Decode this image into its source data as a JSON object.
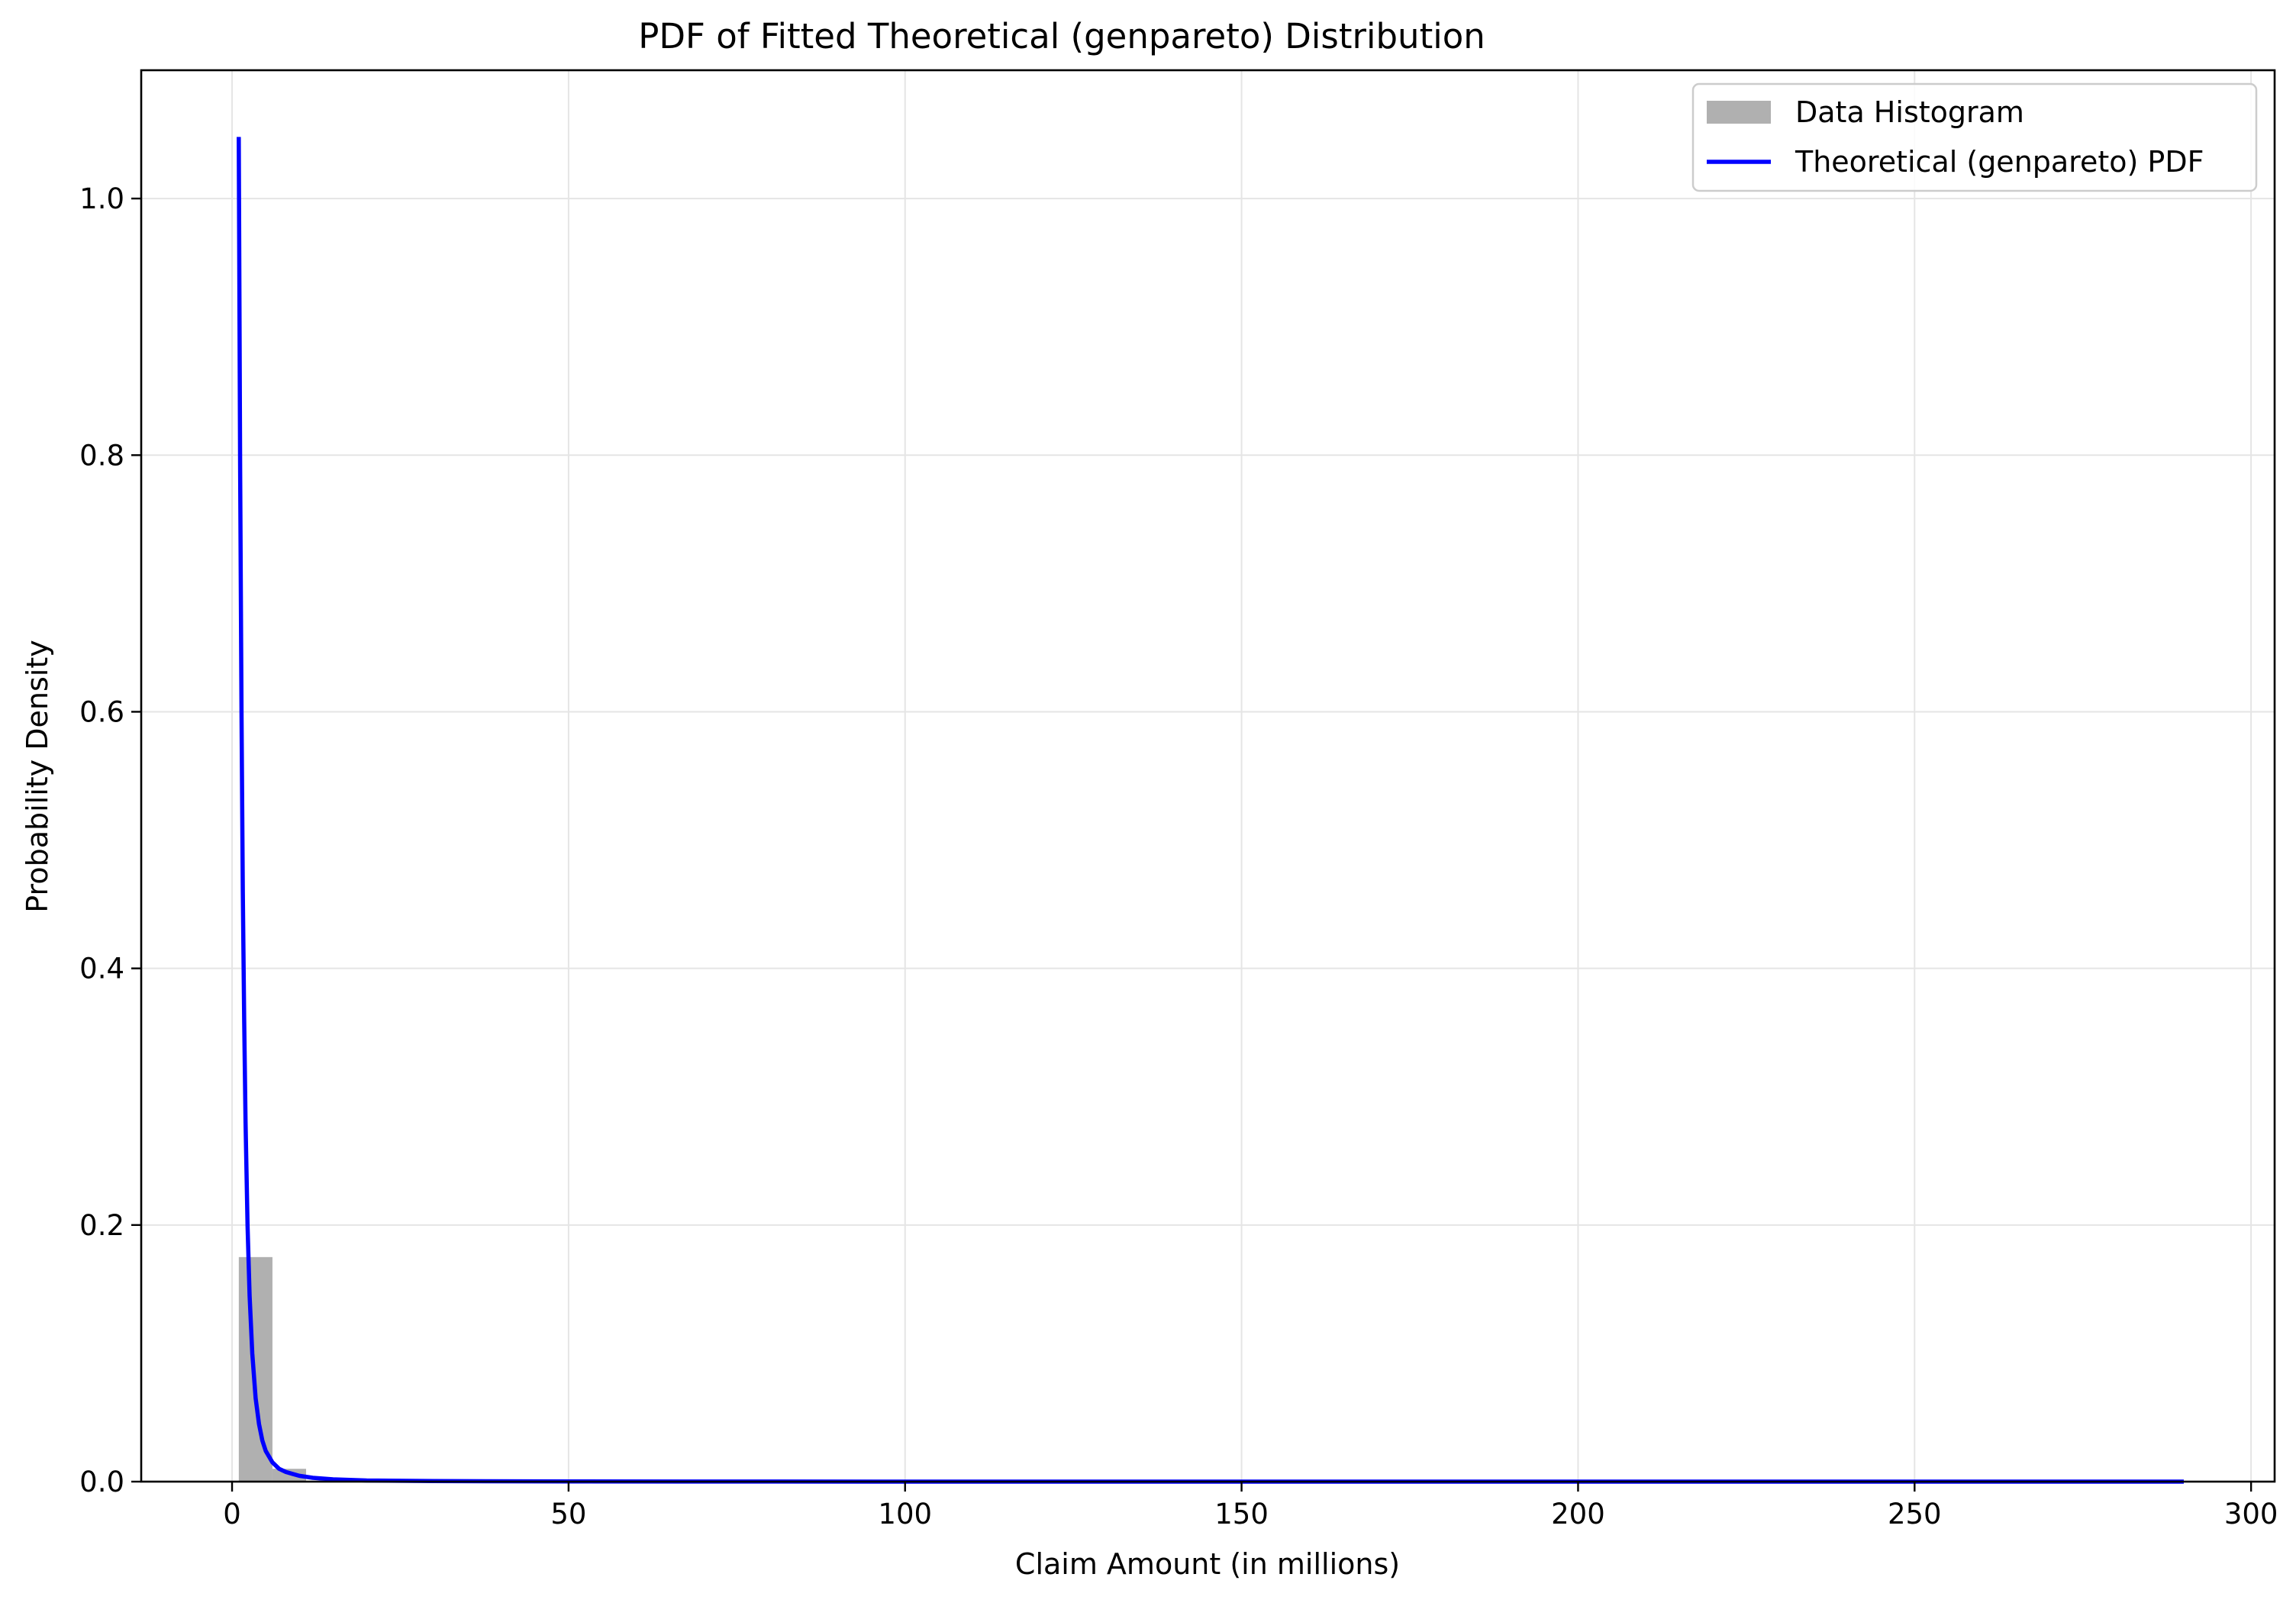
{
  "chart_data": {
    "type": "bar",
    "title": "PDF of Fitted Theoretical (genpareto) Distribution",
    "xlabel": "Claim Amount (in millions)",
    "ylabel": "Probability Density",
    "xlim": [
      -13.5,
      303.5
    ],
    "ylim": [
      0.0,
      1.1
    ],
    "xticks": [
      0,
      50,
      100,
      150,
      200,
      250,
      300
    ],
    "xtick_labels": [
      "0",
      "50",
      "100",
      "150",
      "200",
      "250",
      "300"
    ],
    "yticks": [
      0.0,
      0.2,
      0.4,
      0.6,
      0.8,
      1.0
    ],
    "ytick_labels": [
      "0.0",
      "0.2",
      "0.4",
      "0.6",
      "0.8",
      "1.0"
    ],
    "grid": true,
    "legend_position": "top-right",
    "legend": [
      {
        "label": "Data Histogram",
        "kind": "patch",
        "color": "#b0b0b0"
      },
      {
        "label": "Theoretical (genpareto) PDF",
        "kind": "line",
        "color": "#0000ff"
      }
    ],
    "histogram": {
      "name": "Data Histogram",
      "color": "#b0b0b0",
      "bins": [
        {
          "x0": 1.0,
          "x1": 6.0,
          "density": 0.175
        },
        {
          "x0": 6.0,
          "x1": 11.0,
          "density": 0.01
        }
      ]
    },
    "series": [
      {
        "name": "Theoretical (genpareto) PDF",
        "type": "line",
        "color": "#0000ff",
        "x": [
          1.0,
          1.2,
          1.4,
          1.6,
          1.8,
          2.0,
          2.3,
          2.6,
          3.0,
          3.5,
          4.0,
          4.5,
          5.0,
          6.0,
          7.0,
          8.0,
          10.0,
          12.0,
          15.0,
          20.0,
          30.0,
          50.0,
          100.0,
          150.0,
          200.0,
          250.0,
          290.0
        ],
        "y": [
          1.048,
          0.79,
          0.6,
          0.46,
          0.36,
          0.28,
          0.2,
          0.145,
          0.1,
          0.065,
          0.045,
          0.032,
          0.024,
          0.015,
          0.01,
          0.0075,
          0.0045,
          0.003,
          0.0018,
          0.0009,
          0.0004,
          0.0001,
          2e-05,
          1e-05,
          5e-06,
          3e-06,
          2e-06
        ]
      }
    ]
  }
}
